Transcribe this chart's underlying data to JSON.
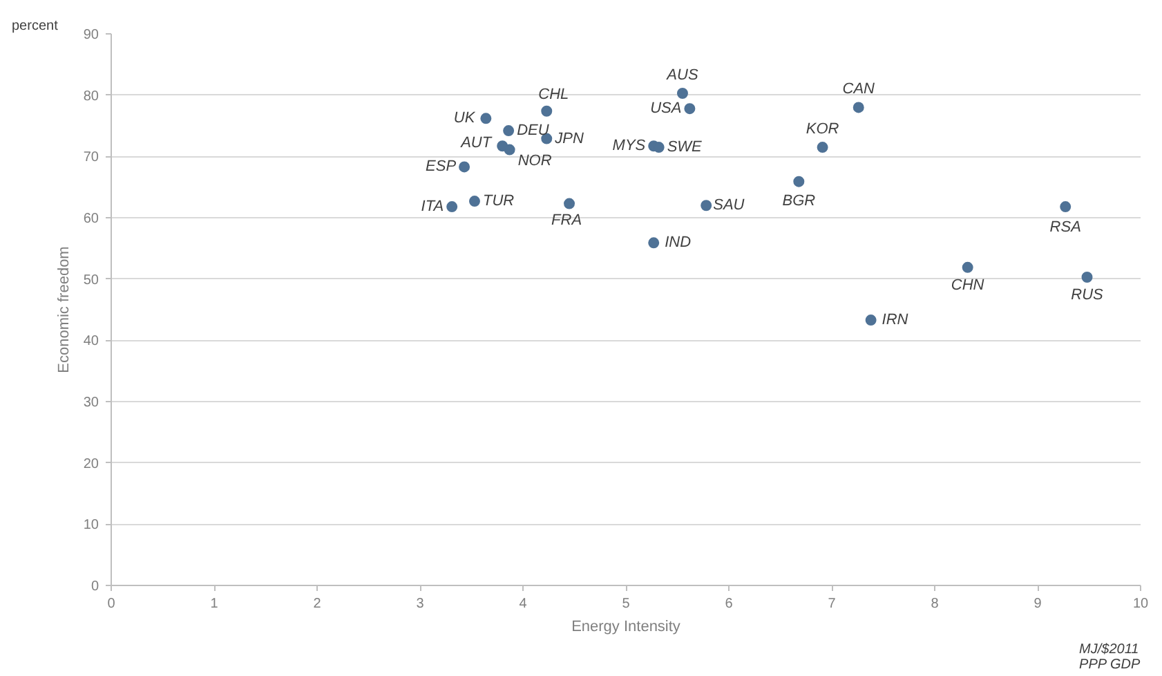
{
  "chart_data": {
    "type": "scatter",
    "xlabel": "Energy Intensity",
    "ylabel": "Economic freedom",
    "x": [
      3.64,
      3.86,
      4.23,
      3.8,
      3.87,
      4.23,
      3.43,
      3.31,
      3.53,
      4.45,
      5.55,
      5.62,
      5.27,
      5.32,
      5.78,
      5.27,
      6.68,
      6.91,
      7.26,
      9.27,
      8.32,
      9.48,
      7.38
    ],
    "series": [
      {
        "color": "#4f7296",
        "values": [
          76.2,
          74.2,
          77.4,
          71.7,
          71.1,
          72.9,
          68.3,
          61.8,
          62.7,
          62.3,
          80.3,
          77.8,
          71.7,
          71.5,
          62.0,
          55.9,
          65.9,
          71.5,
          78.0,
          61.8,
          51.9,
          50.3,
          43.3
        ]
      }
    ],
    "xlim": [
      0,
      10
    ],
    "ylim": [
      0,
      90
    ],
    "xticks": [
      0,
      1,
      2,
      3,
      4,
      5,
      6,
      7,
      8,
      9,
      10
    ],
    "yticks": [
      0,
      10,
      20,
      30,
      40,
      50,
      60,
      70,
      80,
      90
    ],
    "grid": "y",
    "marker": "circle",
    "annotations": [
      "percent",
      "MJ/$2011\nPPP GDP",
      {
        "text": "UK",
        "x": 3.64,
        "y": 76.2
      },
      {
        "text": "DEU",
        "x": 3.86,
        "y": 74.2
      },
      {
        "text": "CHL",
        "x": 4.23,
        "y": 77.4
      },
      {
        "text": "AUT",
        "x": 3.8,
        "y": 71.7
      },
      {
        "text": "NOR",
        "x": 3.87,
        "y": 71.1
      },
      {
        "text": "JPN",
        "x": 4.23,
        "y": 72.9
      },
      {
        "text": "ESP",
        "x": 3.43,
        "y": 68.3
      },
      {
        "text": "ITA",
        "x": 3.31,
        "y": 61.8
      },
      {
        "text": "TUR",
        "x": 3.53,
        "y": 62.7
      },
      {
        "text": "FRA",
        "x": 4.45,
        "y": 62.3
      },
      {
        "text": "AUS",
        "x": 5.55,
        "y": 80.3
      },
      {
        "text": "USA",
        "x": 5.62,
        "y": 77.8
      },
      {
        "text": "MYS",
        "x": 5.27,
        "y": 71.7
      },
      {
        "text": "SWE",
        "x": 5.32,
        "y": 71.5
      },
      {
        "text": "SAU",
        "x": 5.78,
        "y": 62.0
      },
      {
        "text": "IND",
        "x": 5.27,
        "y": 55.9
      },
      {
        "text": "BGR",
        "x": 6.68,
        "y": 65.9
      },
      {
        "text": "KOR",
        "x": 6.91,
        "y": 71.5
      },
      {
        "text": "CAN",
        "x": 7.26,
        "y": 78.0
      },
      {
        "text": "RSA",
        "x": 9.27,
        "y": 61.8
      },
      {
        "text": "CHN",
        "x": 8.32,
        "y": 51.9
      },
      {
        "text": "RUS",
        "x": 9.48,
        "y": 50.3
      },
      {
        "text": "IRN",
        "x": 7.38,
        "y": 43.3
      }
    ]
  }
}
